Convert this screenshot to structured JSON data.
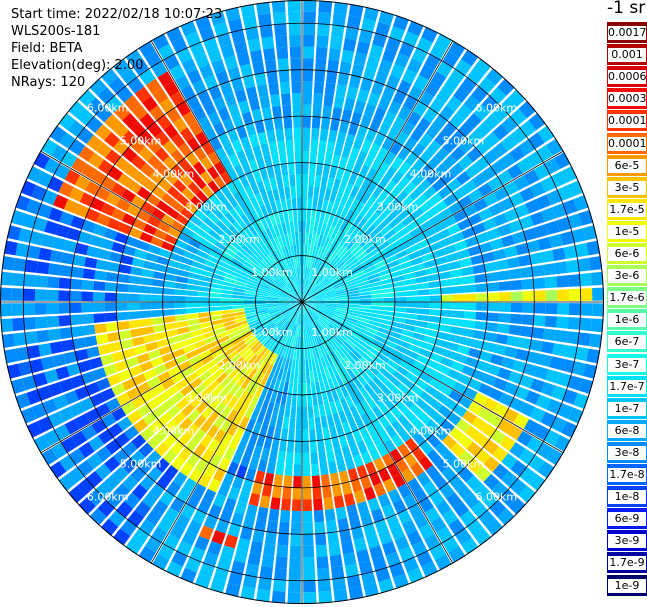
{
  "header": {
    "start_time": "Start time: 2022/02/18 10:07:23",
    "instrument": "WLS200s-181",
    "field": "Field: BETA",
    "elevation": "Elevation(deg): 2.00",
    "nrays": "NRays: 120"
  },
  "colorbar": {
    "unit_label": "-1 sr",
    "levels": [
      {
        "label": "0.0017",
        "color": "#8b0000"
      },
      {
        "label": "0.001",
        "color": "#b40000"
      },
      {
        "label": "0.0006",
        "color": "#d60000"
      },
      {
        "label": "0.0003",
        "color": "#f00a00"
      },
      {
        "label": "0.00017",
        "color": "#ff3300"
      },
      {
        "label": "0.0001",
        "color": "#ff6a00"
      },
      {
        "label": "6e-5",
        "color": "#ff9900"
      },
      {
        "label": "3e-5",
        "color": "#ffc000"
      },
      {
        "label": "1.7e-5",
        "color": "#ffe600"
      },
      {
        "label": "1e-5",
        "color": "#f2ff0a"
      },
      {
        "label": "6e-6",
        "color": "#d0ff2e"
      },
      {
        "label": "3e-6",
        "color": "#a8ff57"
      },
      {
        "label": "1.7e-6",
        "color": "#7dff82"
      },
      {
        "label": "1e-6",
        "color": "#55ffaa"
      },
      {
        "label": "6e-7",
        "color": "#33ffcc"
      },
      {
        "label": "3e-7",
        "color": "#19f5e6"
      },
      {
        "label": "1.7e-7",
        "color": "#00e0ff"
      },
      {
        "label": "1e-7",
        "color": "#00c4ff"
      },
      {
        "label": "6e-8",
        "color": "#00a8ff"
      },
      {
        "label": "3e-8",
        "color": "#008cff"
      },
      {
        "label": "1.7e-8",
        "color": "#0066ff"
      },
      {
        "label": "1e-8",
        "color": "#0040ff"
      },
      {
        "label": "6e-9",
        "color": "#0018f5"
      },
      {
        "label": "3e-9",
        "color": "#0000d0"
      },
      {
        "label": "1.7e-9",
        "color": "#0000a0"
      },
      {
        "label": "1e-9",
        "color": "#000070"
      }
    ]
  },
  "chart_data": {
    "type": "heatmap",
    "projection": "polar PPI",
    "field": "BETA",
    "elevation_deg": 2.0,
    "n_rays": 120,
    "range_rings_km": [
      1,
      2,
      3,
      4,
      5,
      6
    ],
    "ring_labels": [
      "1.00km",
      "2.00km",
      "3.00km",
      "4.00km",
      "5.00km",
      "6.00km"
    ],
    "max_range_km": 6.5,
    "spoke_azimuths_deg": [
      0,
      30,
      60,
      90,
      120,
      150,
      180,
      210,
      240,
      270,
      300,
      330
    ],
    "colorbar_scale": "log",
    "background_level": "1.7e-7",
    "high_backscatter_arcs": [
      {
        "azimuths_deg": [
          205,
          265
        ],
        "range_km": [
          1.3,
          4.5
        ],
        "level": "3e-5"
      },
      {
        "azimuths_deg": [
          292,
          330
        ],
        "range_km": [
          3.0,
          5.8
        ],
        "level": "0.0003"
      },
      {
        "azimuths_deg": [
          140,
          195
        ],
        "range_km": [
          3.8,
          4.4
        ],
        "level": "0.0003"
      },
      {
        "azimuths_deg": [
          118,
          135
        ],
        "range_km": [
          4.3,
          5.6
        ],
        "level": "3e-5"
      },
      {
        "azimuths_deg": [
          196,
          205
        ],
        "range_km": [
          5.3,
          5.6
        ],
        "level": "0.0003"
      },
      {
        "azimuths_deg": [
          86,
          90
        ],
        "range_km": [
          3.0,
          6.3
        ],
        "level": "1.7e-5"
      }
    ]
  }
}
